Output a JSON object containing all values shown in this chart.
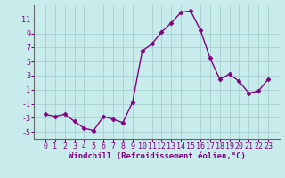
{
  "x": [
    0,
    1,
    2,
    3,
    4,
    5,
    6,
    7,
    8,
    9,
    10,
    11,
    12,
    13,
    14,
    15,
    16,
    17,
    18,
    19,
    20,
    21,
    22,
    23
  ],
  "y": [
    -2.5,
    -2.8,
    -2.5,
    -3.5,
    -4.5,
    -4.8,
    -2.8,
    -3.2,
    -3.7,
    -0.8,
    6.5,
    7.5,
    9.2,
    10.5,
    12.0,
    12.2,
    9.5,
    5.5,
    2.5,
    3.2,
    2.2,
    0.5,
    0.8,
    2.5
  ],
  "line_color": "#800080",
  "marker": "D",
  "marker_size": 2.5,
  "linewidth": 1.0,
  "bg_color": "#c8ecec",
  "grid_color": "#a8d0d0",
  "xlabel": "Windchill (Refroidissement éolien,°C)",
  "xlabel_fontsize": 6.5,
  "ylim": [
    -6,
    13
  ],
  "yticks": [
    -5,
    -3,
    -1,
    1,
    3,
    5,
    7,
    9,
    11
  ],
  "xticks": [
    0,
    1,
    2,
    3,
    4,
    5,
    6,
    7,
    8,
    9,
    10,
    11,
    12,
    13,
    14,
    15,
    16,
    17,
    18,
    19,
    20,
    21,
    22,
    23
  ],
  "tick_fontsize": 6.0,
  "spine_color": "#666666",
  "text_color": "#800080"
}
